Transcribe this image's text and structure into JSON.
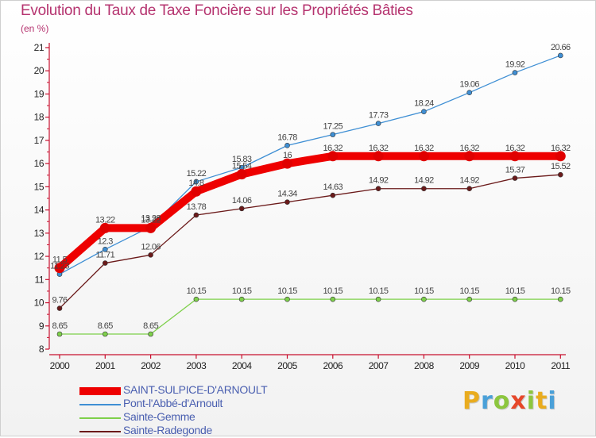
{
  "header": {
    "title": "Evolution du Taux de Taxe Foncière sur les Propriétés Bâties",
    "unit": "(en %)"
  },
  "logo": {
    "text": "Proxiti",
    "letters": [
      "P",
      "r",
      "o",
      "x",
      "i",
      "t",
      "i"
    ]
  },
  "chart_data": {
    "type": "line",
    "title": "Evolution du Taux de Taxe Foncière sur les Propriétés Bâties",
    "ylabel": "(en %)",
    "xlabel": "",
    "ylim": [
      8,
      21
    ],
    "yticks": [
      8,
      9,
      10,
      11,
      12,
      13,
      14,
      15,
      16,
      17,
      18,
      19,
      20,
      21
    ],
    "grid": false,
    "legend_position": "bottom-left",
    "categories": [
      "2000",
      "2001",
      "2002",
      "2003",
      "2004",
      "2005",
      "2006",
      "2007",
      "2008",
      "2009",
      "2010",
      "2011"
    ],
    "series": [
      {
        "name": "SAINT-SULPICE-D'ARNOULT",
        "color": "#ee0000",
        "width": "thick",
        "values": [
          11.5,
          13.22,
          13.22,
          14.8,
          15.54,
          16,
          16.32,
          16.32,
          16.32,
          16.32,
          16.32,
          16.32
        ],
        "labels": [
          "11.5",
          "",
          "13.22",
          "",
          "15.54",
          "16",
          "16.32",
          "16.32",
          "16.32",
          "16.32",
          "16.32",
          "16.32"
        ]
      },
      {
        "name": "Pont-l'Abbé-d'Arnoult",
        "color": "#3f8fd4",
        "width": "thin",
        "values": [
          11.23,
          12.3,
          13.28,
          15.22,
          15.83,
          16.78,
          17.25,
          17.73,
          18.24,
          19.06,
          19.92,
          20.66
        ],
        "labels": [
          "11.23",
          "12.3",
          "13.28",
          "15.22",
          "15.83",
          "16.78",
          "17.25",
          "17.73",
          "18.24",
          "19.06",
          "19.92",
          "20.66"
        ]
      },
      {
        "name": "Sainte-Gemme",
        "color": "#7ed04b",
        "width": "thin",
        "values": [
          8.65,
          8.65,
          8.65,
          10.15,
          10.15,
          10.15,
          10.15,
          10.15,
          10.15,
          10.15,
          10.15,
          10.15
        ],
        "labels": [
          "8.65",
          "8.65",
          "8.65",
          "10.15",
          "10.15",
          "10.15",
          "10.15",
          "10.15",
          "10.15",
          "10.15",
          "10.15",
          "10.15"
        ]
      },
      {
        "name": "Sainte-Radegonde",
        "color": "#6b1a1a",
        "width": "thin",
        "values": [
          9.76,
          11.71,
          12.06,
          13.78,
          14.06,
          14.34,
          14.63,
          14.92,
          14.92,
          14.92,
          15.37,
          15.52
        ],
        "labels": [
          "9.76",
          "11.71",
          "12.06",
          "13.78",
          "14.06",
          "14.34",
          "14.63",
          "14.92",
          "14.92",
          "14.92",
          "15.37",
          "15.52"
        ]
      }
    ],
    "extra_labels": [
      {
        "series": 0,
        "index": 1,
        "text": "13.22"
      },
      {
        "series": 0,
        "index": 3,
        "text": "14.8"
      }
    ]
  }
}
